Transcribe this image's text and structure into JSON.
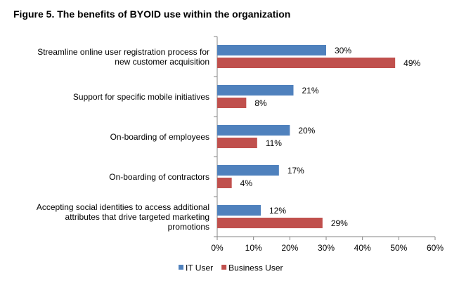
{
  "title": "Figure 5. The benefits of BYOID use within the organization",
  "chart_data": {
    "type": "bar",
    "orientation": "horizontal",
    "categories": [
      [
        "Streamline online user registration process for",
        "new customer acquisition"
      ],
      [
        "Support for specific mobile initiatives"
      ],
      [
        "On-boarding of employees"
      ],
      [
        "On-boarding of contractors"
      ],
      [
        "Accepting social identities to access additional",
        "attributes that drive targeted marketing",
        "promotions"
      ]
    ],
    "series": [
      {
        "name": "IT User",
        "color": "#4F81BD",
        "values": [
          30,
          21,
          20,
          17,
          12
        ],
        "labels": [
          "30%",
          "21%",
          "20%",
          "17%",
          "12%"
        ]
      },
      {
        "name": "Business User",
        "color": "#C0504D",
        "values": [
          49,
          8,
          11,
          4,
          29
        ],
        "labels": [
          "49%",
          "8%",
          "11%",
          "4%",
          "29%"
        ]
      }
    ],
    "xlim": [
      0,
      60
    ],
    "xticks": [
      "0%",
      "10%",
      "20%",
      "30%",
      "40%",
      "50%",
      "60%"
    ],
    "grid": false,
    "legend_position": "bottom"
  }
}
